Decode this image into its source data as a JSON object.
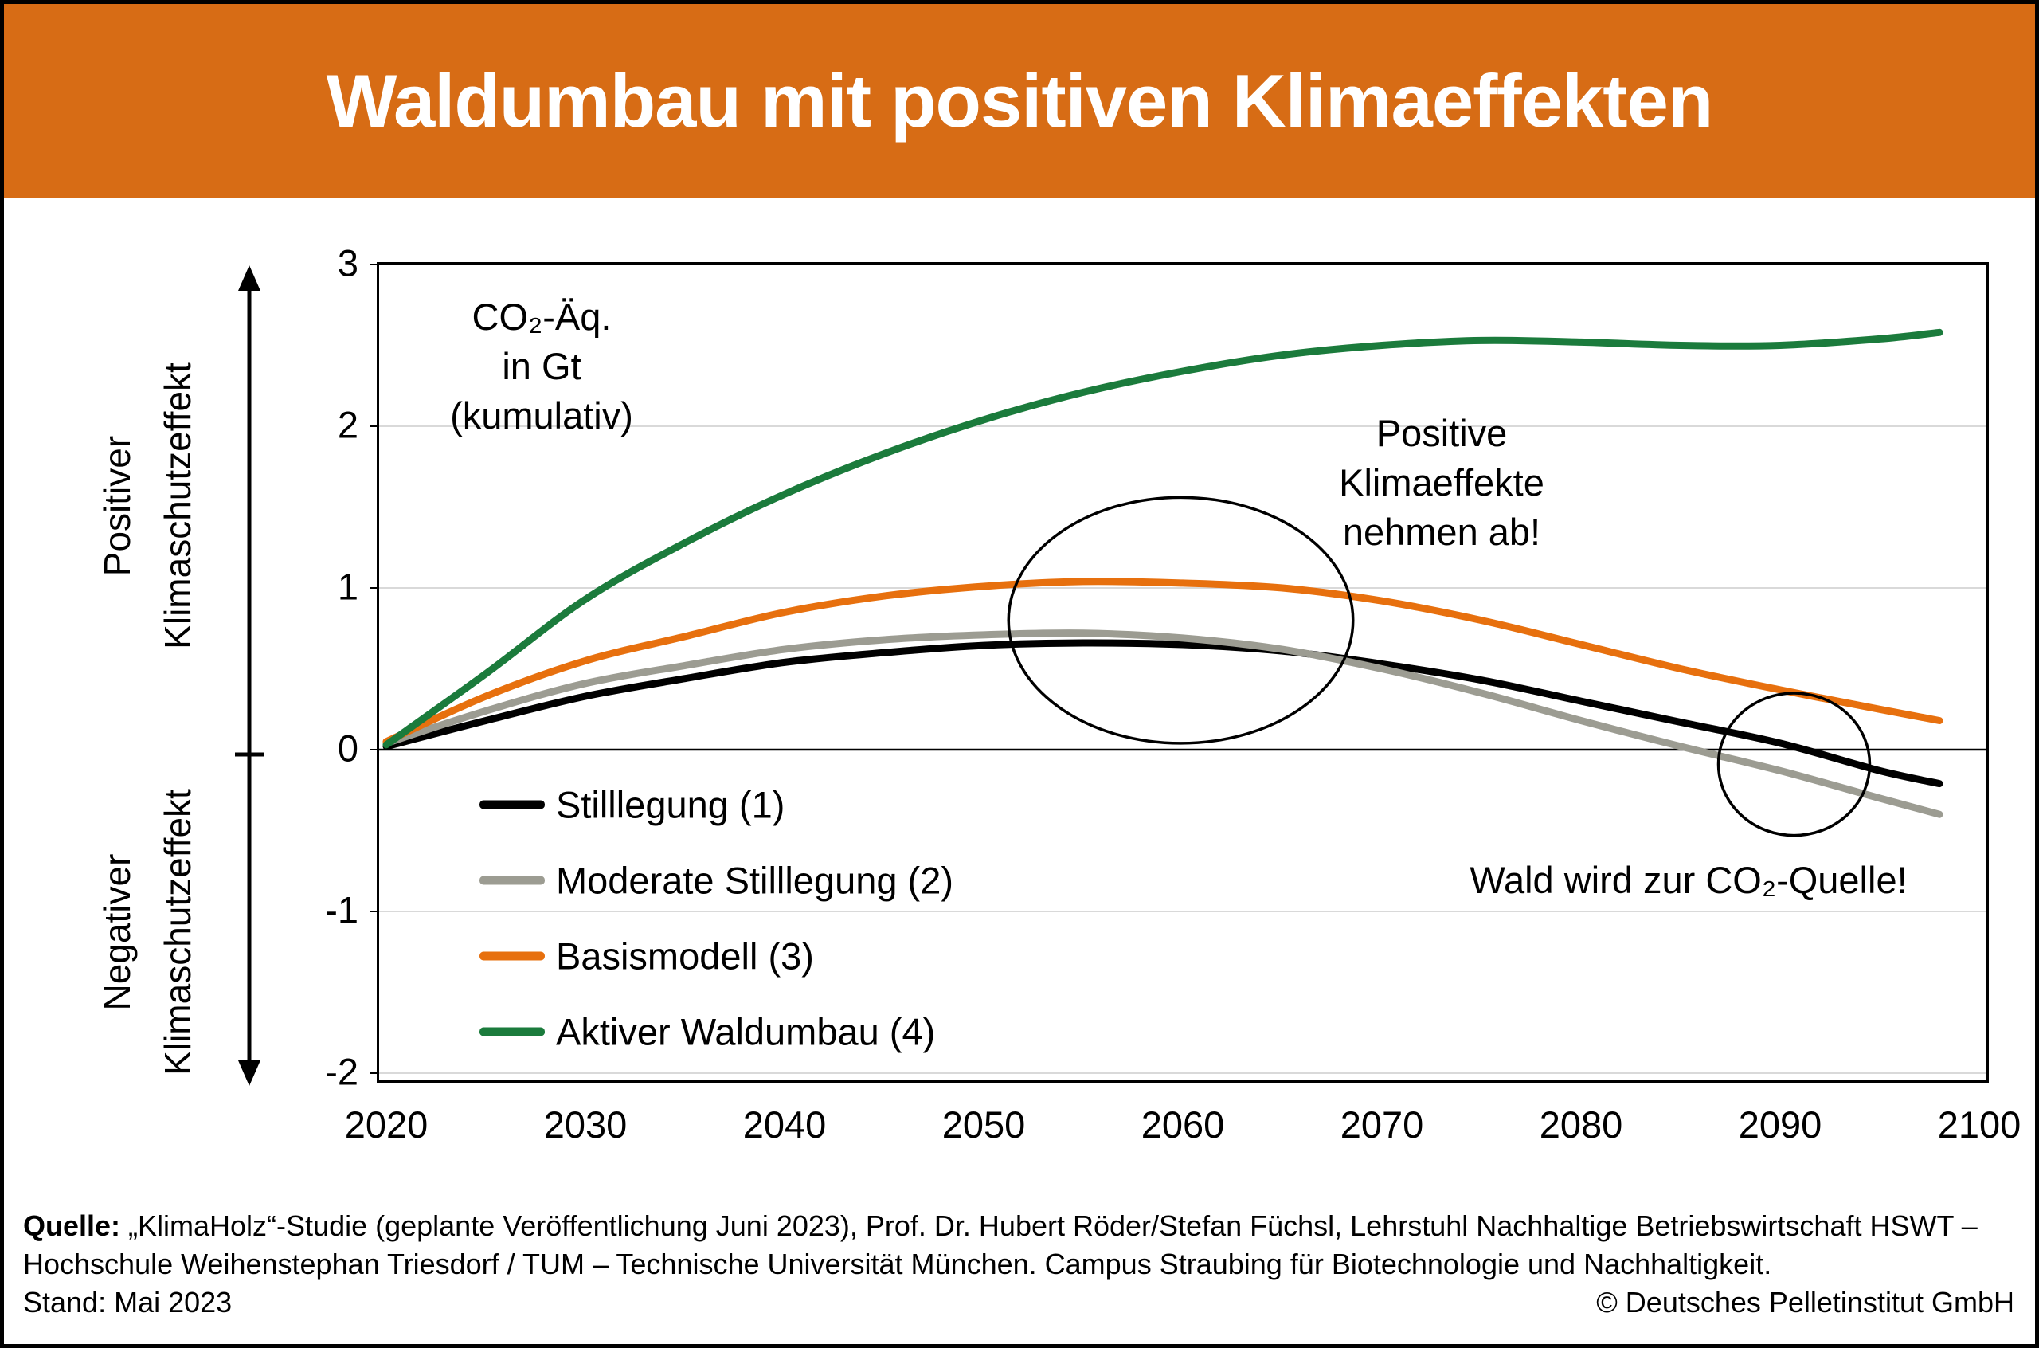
{
  "header": {
    "title": "Waldumbau mit positiven Klimaeffekten",
    "bg_color": "#D76C15",
    "text_color": "#FFFFFF"
  },
  "chart_data": {
    "type": "line",
    "unit_label_lines": [
      "CO₂-Äq.",
      "in Gt",
      "(kumulativ)"
    ],
    "xlim": [
      2020,
      2100
    ],
    "ylim": [
      -2,
      3
    ],
    "x_ticks": [
      2020,
      2030,
      2040,
      2050,
      2060,
      2070,
      2080,
      2090,
      2100
    ],
    "y_ticks": [
      3,
      2,
      1,
      0,
      -1,
      -2
    ],
    "grid_values": [
      2,
      1,
      -1,
      -2
    ],
    "zero_line_value": 0,
    "grid_color": "#D9D9D9",
    "x": [
      2020,
      2025,
      2030,
      2035,
      2040,
      2045,
      2050,
      2055,
      2060,
      2065,
      2070,
      2075,
      2080,
      2085,
      2090,
      2095,
      2098
    ],
    "series": [
      {
        "name": "Stilllegung (1)",
        "color": "#000000",
        "values": [
          0.02,
          0.18,
          0.33,
          0.44,
          0.54,
          0.6,
          0.645,
          0.66,
          0.65,
          0.61,
          0.53,
          0.43,
          0.3,
          0.17,
          0.04,
          -0.13,
          -0.21
        ]
      },
      {
        "name": "Moderate Stilllegung (2)",
        "color": "#9C9C92",
        "values": [
          0.04,
          0.24,
          0.41,
          0.52,
          0.62,
          0.68,
          0.71,
          0.72,
          0.69,
          0.62,
          0.5,
          0.35,
          0.18,
          0.02,
          -0.13,
          -0.3,
          -0.4
        ]
      },
      {
        "name": "Basismodell (3)",
        "color": "#E7700E",
        "values": [
          0.05,
          0.33,
          0.55,
          0.7,
          0.85,
          0.95,
          1.01,
          1.04,
          1.03,
          1.0,
          0.92,
          0.8,
          0.65,
          0.5,
          0.37,
          0.25,
          0.18
        ]
      },
      {
        "name": "Aktiver Waldumbau (4)",
        "color": "#1B7B3C",
        "values": [
          0.03,
          0.47,
          0.93,
          1.28,
          1.58,
          1.83,
          2.04,
          2.21,
          2.34,
          2.44,
          2.5,
          2.53,
          2.52,
          2.5,
          2.5,
          2.54,
          2.58
        ]
      }
    ],
    "annotations": [
      {
        "id": "positive-effects",
        "lines": [
          "Positive",
          "Klimaeffekte",
          "nehmen ab!"
        ],
        "year": 2073,
        "value": 1.65
      },
      {
        "id": "co2-source",
        "lines": [
          "Wald wird zur CO₂-Quelle!"
        ],
        "year": 2085.4,
        "value": -0.81
      }
    ],
    "ellipses": [
      {
        "id": "peak-ellipse",
        "year": 2059.9,
        "value": 0.8,
        "rx_years": 8.65,
        "ry_values": 0.76
      },
      {
        "id": "zero-cross-ellipse",
        "year": 2090.7,
        "value": -0.09,
        "rx_years": 3.8,
        "ry_values": 0.44
      }
    ],
    "zone_labels": {
      "positive": [
        "Positiver",
        "Klimaschutzeffekt"
      ],
      "negative": [
        "Negativer",
        "Klimaschutzeffekt"
      ]
    }
  },
  "legend": {
    "items": [
      {
        "label": "Stilllegung (1)",
        "color": "#000000"
      },
      {
        "label": "Moderate Stilllegung (2)",
        "color": "#9C9C92"
      },
      {
        "label": "Basismodell (3)",
        "color": "#E7700E"
      },
      {
        "label": "Aktiver Waldumbau (4)",
        "color": "#1B7B3C"
      }
    ]
  },
  "footer": {
    "line1_bold": "Quelle:",
    "line1": " „KlimaHolz“-Studie (geplante Veröffentlichung Juni 2023), Prof. Dr. Hubert Röder/Stefan Füchsl, Lehrstuhl Nachhaltige Betriebswirtschaft HSWT –",
    "line2": "Hochschule Weihenstephan Triesdorf / TUM – Technische Universität München. Campus Straubing für Biotechnologie und Nachhaltigkeit.",
    "line3_left": "Stand: Mai 2023",
    "line3_right": "© Deutsches Pelletinstitut GmbH"
  }
}
